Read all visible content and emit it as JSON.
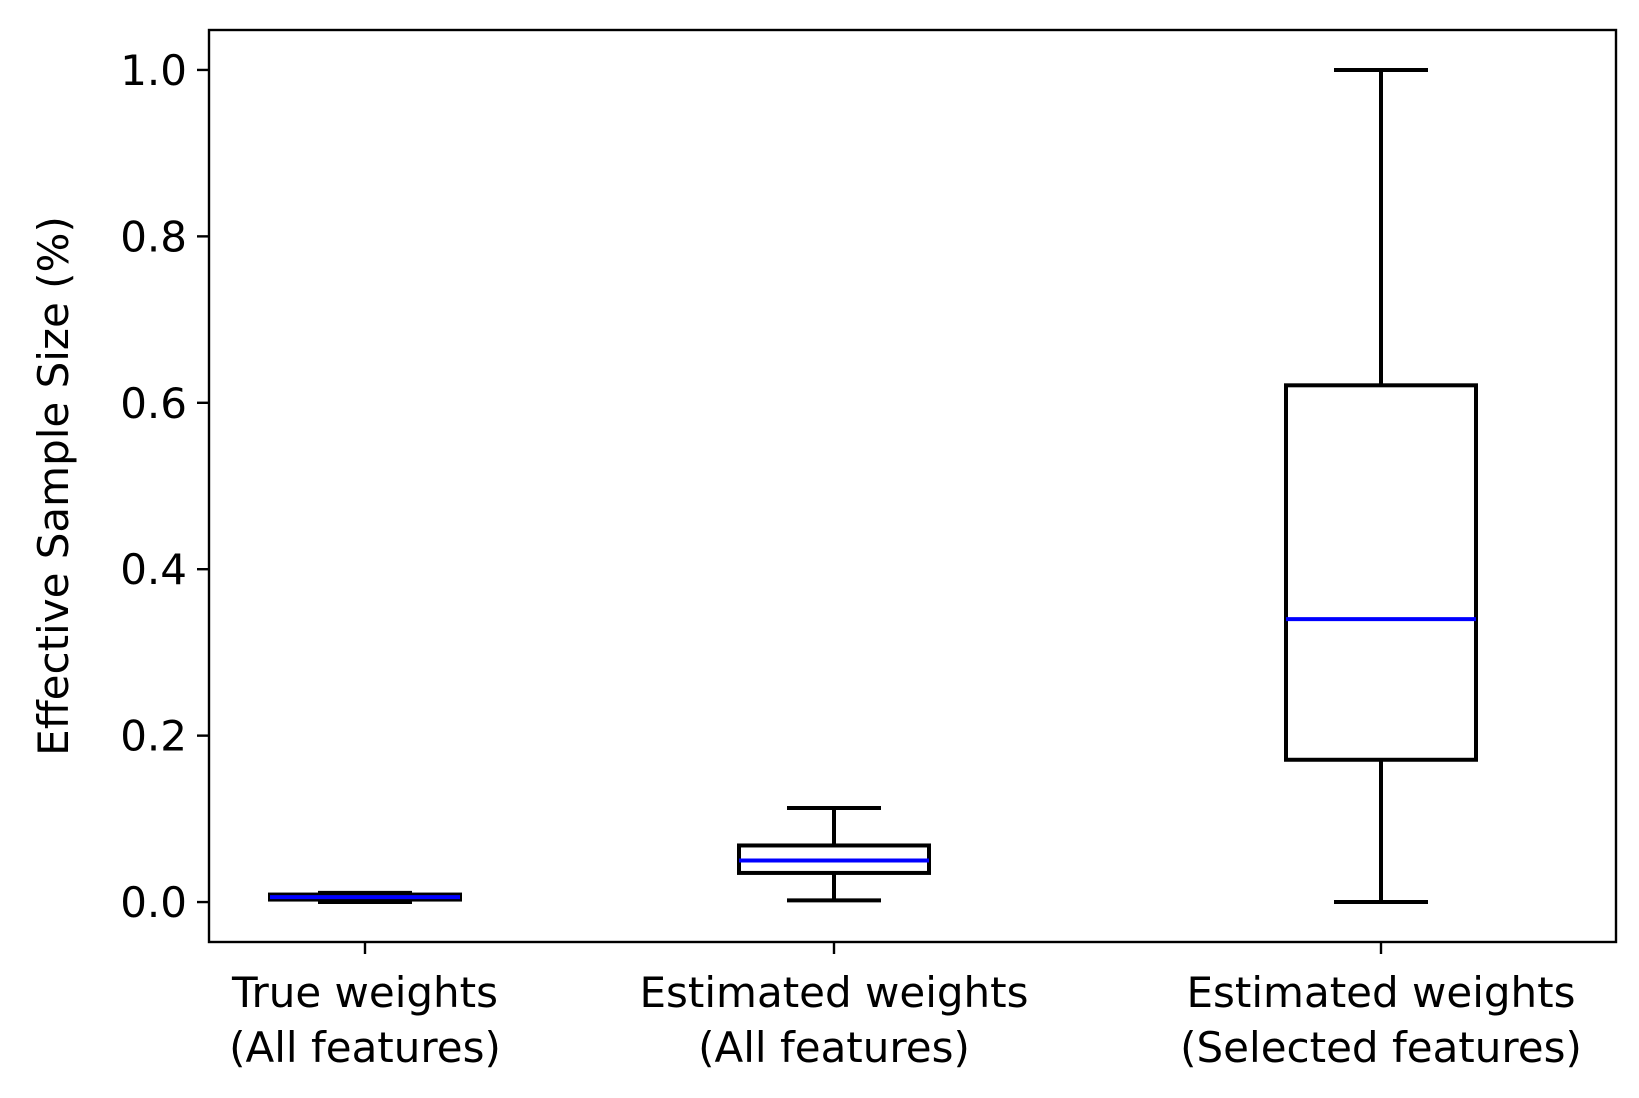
{
  "chart_data": {
    "type": "box",
    "title": "",
    "xlabel": "",
    "ylabel": "Effective Sample Size (%)",
    "ylim": [
      -0.048,
      1.048
    ],
    "yticks": [
      "0.0",
      "0.2",
      "0.4",
      "0.6",
      "0.8",
      "1.0"
    ],
    "ytick_values": [
      0.0,
      0.2,
      0.4,
      0.6,
      0.8,
      1.0
    ],
    "categories": [
      [
        "True weights",
        "(All features)"
      ],
      [
        "Estimated weights",
        "(All features)"
      ],
      [
        "Estimated weights",
        "(Selected features)"
      ]
    ],
    "boxes": [
      {
        "whisker_low": 0.0,
        "q1": 0.003,
        "median": 0.006,
        "q3": 0.009,
        "whisker_high": 0.011
      },
      {
        "whisker_low": 0.002,
        "q1": 0.035,
        "median": 0.05,
        "q3": 0.068,
        "whisker_high": 0.113
      },
      {
        "whisker_low": 0.0,
        "q1": 0.171,
        "median": 0.34,
        "q3": 0.621,
        "whisker_high": 1.0
      }
    ],
    "grid": false,
    "colors": {
      "box": "#000000",
      "median": "#0000ff",
      "axes": "#000000"
    }
  }
}
